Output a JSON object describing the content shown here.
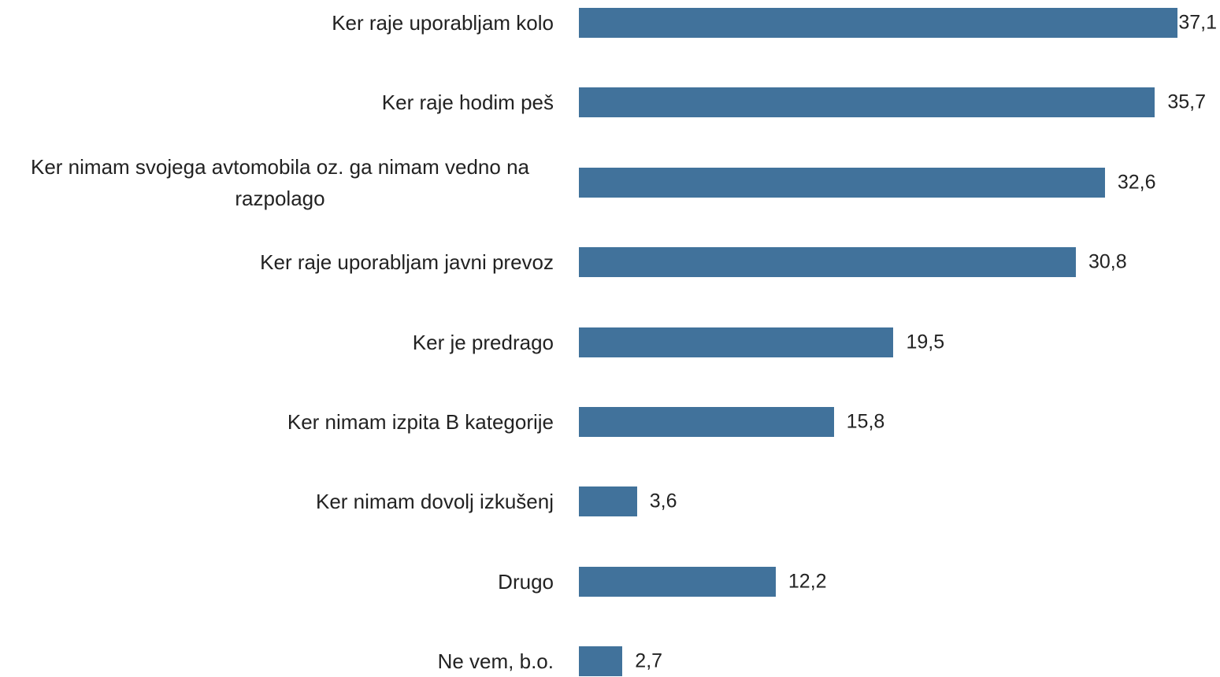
{
  "chart_data": {
    "type": "bar",
    "orientation": "horizontal",
    "categories": [
      "Ker raje uporabljam kolo",
      "Ker raje hodim peš",
      "Ker nimam svojega avtomobila oz. ga nimam vedno na razpolago",
      "Ker raje uporabljam javni prevoz",
      "Ker je predrago",
      "Ker nimam izpita B kategorije",
      "Ker nimam dovolj izkušenj",
      "Drugo",
      "Ne vem, b.o."
    ],
    "values": [
      37.1,
      35.7,
      32.6,
      30.8,
      19.5,
      15.8,
      3.6,
      12.2,
      2.7
    ],
    "value_labels": [
      "37,1",
      "35,7",
      "32,6",
      "30,8",
      "19,5",
      "15,8",
      "3,6",
      "12,2",
      "2,7"
    ],
    "color": "#41729b"
  }
}
